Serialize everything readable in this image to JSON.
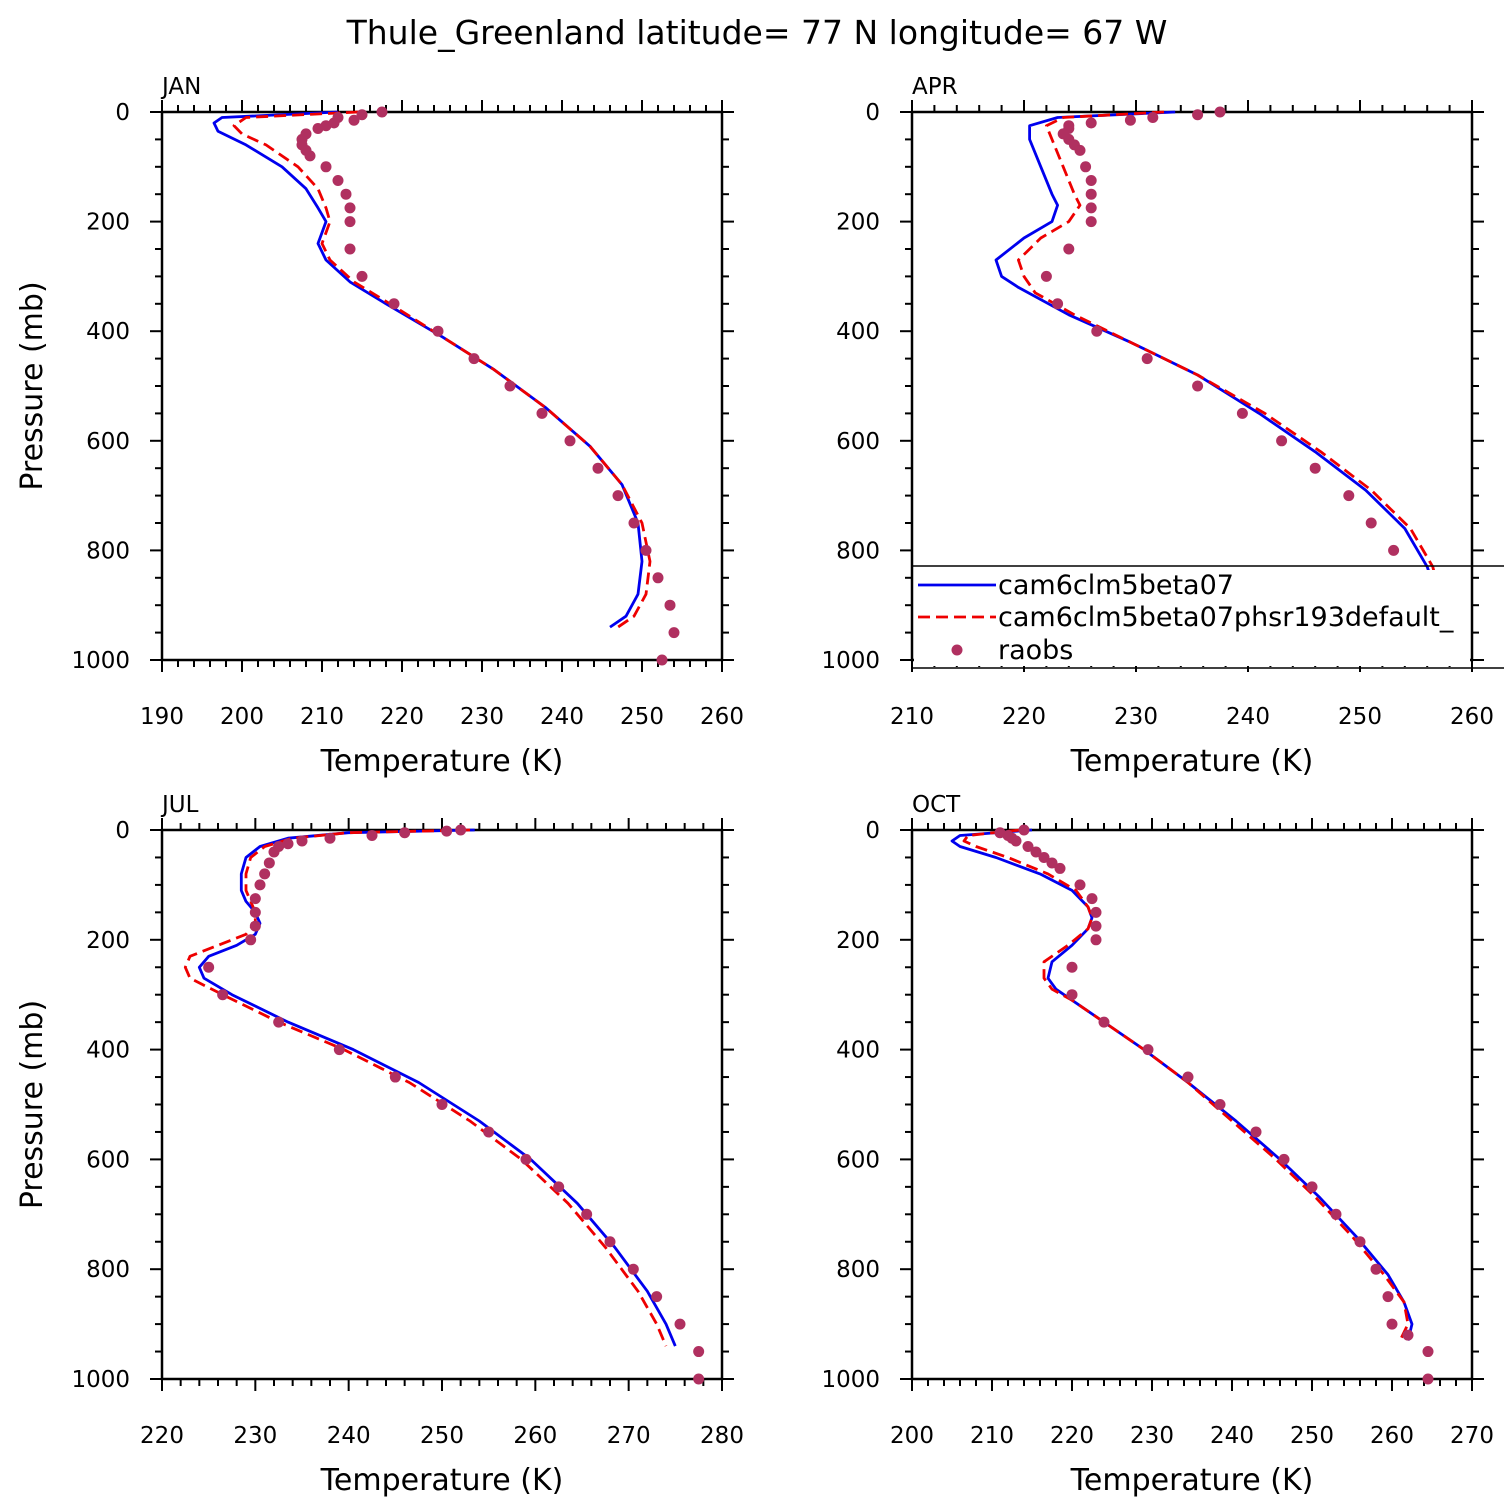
{
  "title": "Thule_Greenland  latitude= 77 N longitude= 67 W",
  "colors": {
    "model": "#0000ee",
    "model_phsr": "#ee0000",
    "raobs": "#b03060"
  },
  "legend": {
    "panel": "APR",
    "entries": [
      {
        "label": "cam6clm5beta07",
        "style": "solid-line",
        "color": "#0000ee"
      },
      {
        "label": "cam6clm5beta07phsr193default_",
        "style": "dashed-line",
        "color": "#ee0000"
      },
      {
        "label": "raobs",
        "style": "marker",
        "color": "#b03060"
      }
    ]
  },
  "chart_data": [
    {
      "type": "line",
      "panel_label": "JAN",
      "xlabel": "Temperature (K)",
      "ylabel": "Pressure (mb)",
      "xlim": [
        190,
        260
      ],
      "xticks": [
        190,
        200,
        210,
        220,
        230,
        240,
        250,
        260
      ],
      "ylim": [
        0,
        1000
      ],
      "yticks": [
        0,
        200,
        400,
        600,
        800,
        1000
      ],
      "y_inverted": true,
      "series": [
        {
          "name": "cam6clm5beta07",
          "style": "solid",
          "x": [
            212.0,
            197.5,
            196.5,
            197.0,
            200.5,
            205.0,
            208.0,
            209.5,
            210.5,
            210.0,
            209.5,
            210.5,
            213.5,
            218.0,
            225.0,
            231.5,
            238.0,
            243.5,
            247.5,
            249.5,
            250.0,
            249.5,
            248.0,
            246.0
          ],
          "y": [
            0,
            10,
            20,
            35,
            60,
            100,
            140,
            175,
            200,
            220,
            240,
            270,
            310,
            350,
            410,
            470,
            540,
            610,
            680,
            750,
            820,
            880,
            920,
            940
          ]
        },
        {
          "name": "cam6clm5beta07phsr193default_",
          "style": "dashed",
          "x": [
            214.5,
            200.5,
            199.0,
            200.0,
            203.0,
            207.0,
            209.5,
            210.5,
            211.0,
            210.5,
            210.0,
            211.0,
            214.0,
            218.5,
            225.0,
            231.5,
            238.0,
            243.5,
            247.5,
            250.0,
            251.0,
            250.5,
            249.0,
            247.0
          ],
          "y": [
            0,
            10,
            25,
            40,
            60,
            100,
            140,
            175,
            200,
            220,
            240,
            270,
            310,
            350,
            410,
            470,
            540,
            610,
            680,
            750,
            820,
            880,
            920,
            940
          ]
        },
        {
          "name": "raobs",
          "style": "marker",
          "x": [
            217.5,
            215.0,
            212.0,
            214.0,
            211.5,
            210.5,
            209.5,
            208.0,
            207.5,
            207.5,
            208.0,
            208.5,
            210.5,
            212.0,
            213.0,
            213.5,
            213.5,
            213.5,
            215.0,
            219.0,
            224.5,
            229.0,
            233.5,
            237.5,
            241.0,
            244.5,
            247.0,
            249.0,
            250.5,
            252.0,
            253.5,
            254.0,
            252.5
          ],
          "y": [
            0,
            5,
            10,
            15,
            20,
            25,
            30,
            40,
            50,
            60,
            70,
            80,
            100,
            125,
            150,
            175,
            200,
            250,
            300,
            350,
            400,
            450,
            500,
            550,
            600,
            650,
            700,
            750,
            800,
            850,
            900,
            950,
            1000
          ]
        }
      ]
    },
    {
      "type": "line",
      "panel_label": "APR",
      "xlabel": "Temperature (K)",
      "ylabel": "",
      "xlim": [
        210,
        260
      ],
      "xticks": [
        210,
        220,
        230,
        240,
        250,
        260
      ],
      "ylim": [
        0,
        1000
      ],
      "yticks": [
        0,
        200,
        400,
        600,
        800,
        1000
      ],
      "y_inverted": true,
      "series": [
        {
          "name": "cam6clm5beta07",
          "style": "solid",
          "x": [
            233.5,
            223.0,
            220.5,
            220.5,
            221.5,
            222.5,
            223.0,
            222.5,
            220.0,
            217.5,
            218.0,
            219.5,
            224.0,
            229.5,
            235.5,
            241.0,
            246.0,
            250.5,
            254.0,
            256.0,
            257.0,
            257.0,
            256.0,
            255.0
          ],
          "y": [
            0,
            10,
            25,
            50,
            100,
            150,
            170,
            200,
            230,
            270,
            300,
            320,
            370,
            420,
            480,
            550,
            620,
            690,
            760,
            830,
            890,
            930,
            950,
            940
          ]
        },
        {
          "name": "cam6clm5beta07phsr193default_",
          "style": "dashed",
          "x": [
            232.5,
            223.5,
            222.0,
            222.5,
            223.5,
            224.5,
            225.0,
            224.0,
            221.5,
            219.5,
            220.0,
            221.0,
            224.5,
            229.5,
            235.5,
            241.5,
            246.5,
            251.0,
            254.5,
            256.5,
            257.2,
            256.5,
            255.5,
            254.0
          ],
          "y": [
            0,
            10,
            25,
            50,
            100,
            150,
            170,
            200,
            230,
            270,
            300,
            330,
            370,
            420,
            480,
            550,
            620,
            690,
            760,
            830,
            890,
            930,
            950,
            940
          ]
        },
        {
          "name": "raobs",
          "style": "marker",
          "x": [
            237.5,
            235.5,
            231.5,
            229.5,
            226.0,
            224.0,
            224.0,
            223.5,
            224.0,
            224.5,
            225.0,
            225.5,
            226.0,
            226.0,
            226.0,
            226.0,
            224.0,
            222.0,
            223.0,
            226.5,
            231.0,
            235.5,
            239.5,
            243.0,
            246.0,
            249.0,
            251.0,
            253.0,
            254.5,
            256.0,
            257.0,
            257.0
          ],
          "y": [
            0,
            5,
            10,
            15,
            20,
            25,
            30,
            40,
            50,
            60,
            70,
            100,
            125,
            150,
            175,
            200,
            250,
            300,
            350,
            400,
            450,
            500,
            550,
            600,
            650,
            700,
            750,
            800,
            850,
            900,
            950,
            1000
          ]
        }
      ]
    },
    {
      "type": "line",
      "panel_label": "JUL",
      "xlabel": "Temperature (K)",
      "ylabel": "Pressure (mb)",
      "xlim": [
        220,
        280
      ],
      "xticks": [
        220,
        230,
        240,
        250,
        260,
        270,
        280
      ],
      "ylim": [
        0,
        1000
      ],
      "yticks": [
        0,
        200,
        400,
        600,
        800,
        1000
      ],
      "y_inverted": true,
      "series": [
        {
          "name": "cam6clm5beta07",
          "style": "solid",
          "x": [
            253.5,
            240.0,
            233.5,
            230.5,
            229.0,
            228.5,
            228.5,
            229.0,
            230.0,
            230.5,
            230.0,
            228.0,
            225.0,
            224.0,
            224.5,
            227.5,
            233.5,
            240.5,
            247.5,
            254.0,
            259.5,
            264.5,
            268.5,
            272.0,
            274.0,
            275.0
          ],
          "y": [
            0,
            5,
            15,
            30,
            50,
            80,
            110,
            130,
            150,
            170,
            190,
            210,
            230,
            250,
            270,
            300,
            350,
            400,
            460,
            530,
            600,
            680,
            760,
            840,
            900,
            940
          ]
        },
        {
          "name": "cam6clm5beta07phsr193default_",
          "style": "dashed",
          "x": [
            253.0,
            240.0,
            234.0,
            231.0,
            229.5,
            229.0,
            229.0,
            229.5,
            230.0,
            230.0,
            229.0,
            226.0,
            223.0,
            222.5,
            223.0,
            226.5,
            232.5,
            239.5,
            246.5,
            253.0,
            258.5,
            263.5,
            267.5,
            271.0,
            273.0,
            274.0
          ],
          "y": [
            0,
            5,
            15,
            30,
            50,
            80,
            110,
            130,
            150,
            170,
            190,
            210,
            230,
            250,
            270,
            300,
            350,
            400,
            460,
            530,
            600,
            680,
            760,
            840,
            900,
            940
          ]
        },
        {
          "name": "raobs",
          "style": "marker",
          "x": [
            252.0,
            250.5,
            246.0,
            242.5,
            238.0,
            235.0,
            233.5,
            232.5,
            232.0,
            231.5,
            231.0,
            230.5,
            230.0,
            230.0,
            230.0,
            229.5,
            225.0,
            226.5,
            232.5,
            239.0,
            245.0,
            250.0,
            255.0,
            259.0,
            262.5,
            265.5,
            268.0,
            270.5,
            273.0,
            275.5,
            277.5,
            277.5
          ],
          "y": [
            0,
            2,
            5,
            10,
            15,
            20,
            25,
            30,
            40,
            60,
            80,
            100,
            125,
            150,
            175,
            200,
            250,
            300,
            350,
            400,
            450,
            500,
            550,
            600,
            650,
            700,
            750,
            800,
            850,
            900,
            950,
            1000
          ]
        }
      ]
    },
    {
      "type": "line",
      "panel_label": "OCT",
      "xlabel": "Temperature (K)",
      "ylabel": "",
      "xlim": [
        200,
        270
      ],
      "xticks": [
        200,
        210,
        220,
        230,
        240,
        250,
        260,
        270
      ],
      "ylim": [
        0,
        1000
      ],
      "yticks": [
        0,
        200,
        400,
        600,
        800,
        1000
      ],
      "y_inverted": true,
      "series": [
        {
          "name": "cam6clm5beta07",
          "style": "solid",
          "x": [
            215.0,
            206.0,
            205.0,
            206.0,
            210.5,
            216.0,
            220.0,
            222.0,
            222.5,
            222.0,
            220.0,
            217.5,
            217.0,
            218.0,
            220.0,
            224.0,
            229.0,
            234.5,
            240.5,
            246.0,
            251.0,
            255.5,
            259.5,
            261.5,
            262.5,
            262.0
          ],
          "y": [
            0,
            10,
            20,
            30,
            50,
            80,
            110,
            140,
            160,
            180,
            210,
            240,
            270,
            290,
            310,
            350,
            400,
            460,
            530,
            600,
            670,
            740,
            810,
            860,
            900,
            930
          ]
        },
        {
          "name": "cam6clm5beta07phsr193default_",
          "style": "dashed",
          "x": [
            213.5,
            207.0,
            206.5,
            208.0,
            212.0,
            217.0,
            220.5,
            222.0,
            222.5,
            222.0,
            219.5,
            216.5,
            216.5,
            217.5,
            220.0,
            224.0,
            229.0,
            234.5,
            240.0,
            245.5,
            250.5,
            255.0,
            259.0,
            261.5,
            262.0,
            261.0
          ],
          "y": [
            0,
            10,
            20,
            30,
            50,
            80,
            110,
            140,
            160,
            180,
            210,
            240,
            270,
            290,
            310,
            350,
            400,
            460,
            530,
            600,
            670,
            740,
            810,
            860,
            900,
            930
          ]
        },
        {
          "name": "raobs",
          "style": "marker",
          "x": [
            214.0,
            211.0,
            212.0,
            212.5,
            213.0,
            214.5,
            215.5,
            216.5,
            217.5,
            218.5,
            221.0,
            222.5,
            223.0,
            223.0,
            223.0,
            220.0,
            220.0,
            224.0,
            229.5,
            234.5,
            238.5,
            243.0,
            246.5,
            250.0,
            253.0,
            256.0,
            258.0,
            259.5,
            260.0,
            262.0,
            264.5,
            264.5
          ],
          "y": [
            0,
            5,
            10,
            15,
            20,
            30,
            40,
            50,
            60,
            70,
            100,
            125,
            150,
            175,
            200,
            250,
            300,
            350,
            400,
            450,
            500,
            550,
            600,
            650,
            700,
            750,
            800,
            850,
            900,
            920,
            950,
            1000
          ]
        }
      ]
    }
  ]
}
